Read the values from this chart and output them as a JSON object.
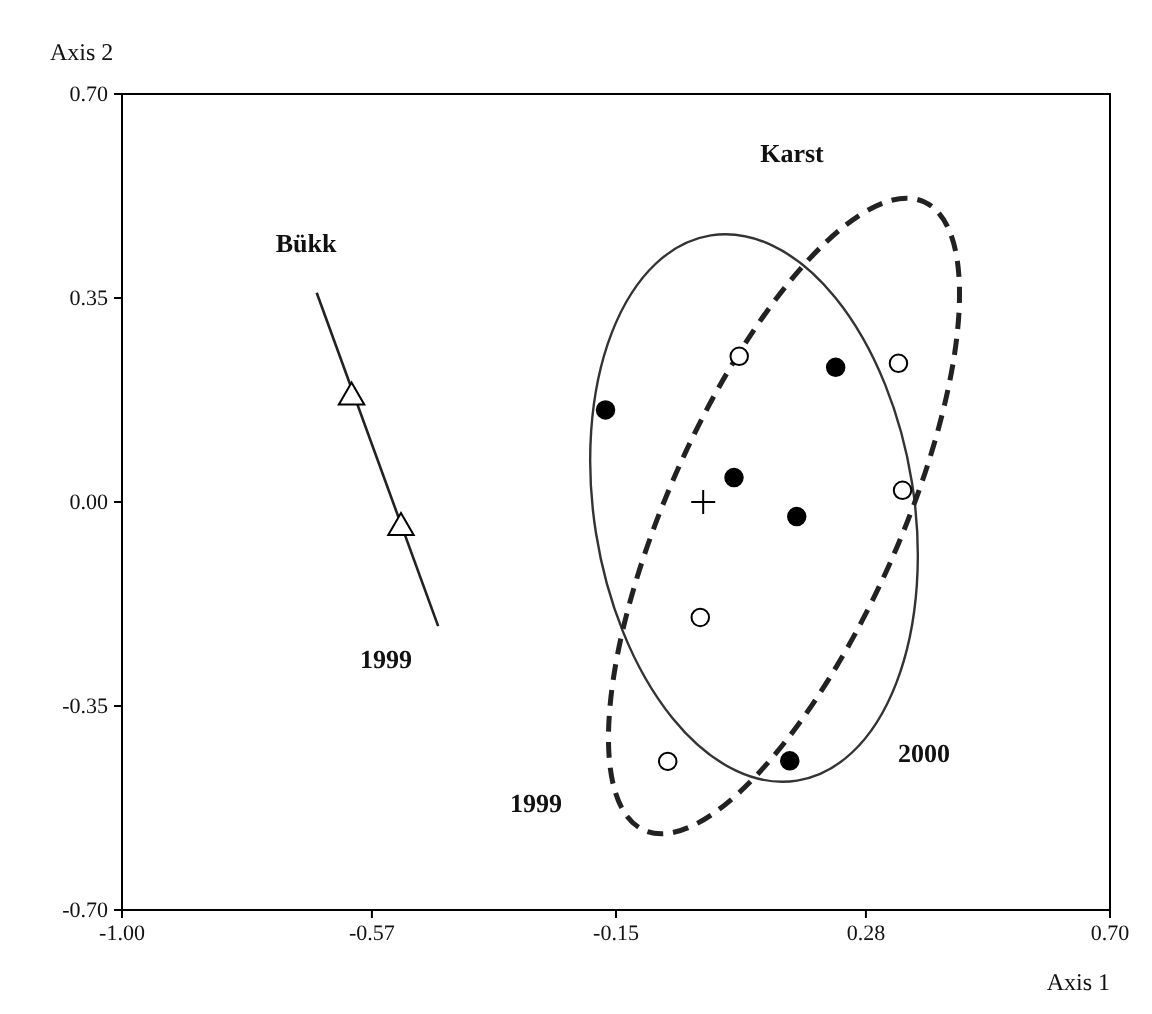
{
  "chart_data": {
    "type": "scatter",
    "xlabel": "Axis 1",
    "ylabel": "Axis 2",
    "xlim": [
      -1.0,
      0.7
    ],
    "ylim": [
      -0.7,
      0.7
    ],
    "xticks": [
      {
        "value": -1.0,
        "label": "-1.00"
      },
      {
        "value": -0.57,
        "label": "-0.57"
      },
      {
        "value": -0.15,
        "label": "-0.15"
      },
      {
        "value": 0.28,
        "label": "0.28"
      },
      {
        "value": 0.7,
        "label": "0.70"
      }
    ],
    "yticks": [
      {
        "value": -0.7,
        "label": "-0.70"
      },
      {
        "value": -0.35,
        "label": "-0.35"
      },
      {
        "value": 0.0,
        "label": "0.00"
      },
      {
        "value": 0.35,
        "label": "0.35"
      },
      {
        "value": 0.7,
        "label": "0.70"
      }
    ],
    "grid": false,
    "series": [
      {
        "type": "line",
        "line_style": "solid",
        "marker": "none",
        "color": "#222222",
        "x": [
          -0.665,
          -0.456
        ],
        "values": [
          0.359,
          -0.213
        ]
      },
      {
        "marker": "triangle",
        "color": "#ffffff",
        "x": [
          -0.605,
          -0.52
        ],
        "values": [
          0.18,
          -0.044
        ]
      },
      {
        "marker": "circle",
        "color": "#000000",
        "x": [
          -0.168,
          0.053,
          0.228,
          0.161,
          0.149
        ],
        "values": [
          0.158,
          0.042,
          0.231,
          -0.025,
          -0.444
        ]
      },
      {
        "marker": "circle",
        "color": "#ffffff",
        "x": [
          0.062,
          0.336,
          0.343,
          -0.005,
          -0.061
        ],
        "values": [
          0.25,
          0.238,
          0.02,
          -0.198,
          -0.445
        ]
      },
      {
        "marker": "cross",
        "color": "#000000",
        "x": [
          0.0
        ],
        "values": [
          0.0
        ]
      }
    ],
    "annotations": [
      "Bükk",
      "Karst",
      "1999",
      "1999",
      "2000"
    ]
  }
}
